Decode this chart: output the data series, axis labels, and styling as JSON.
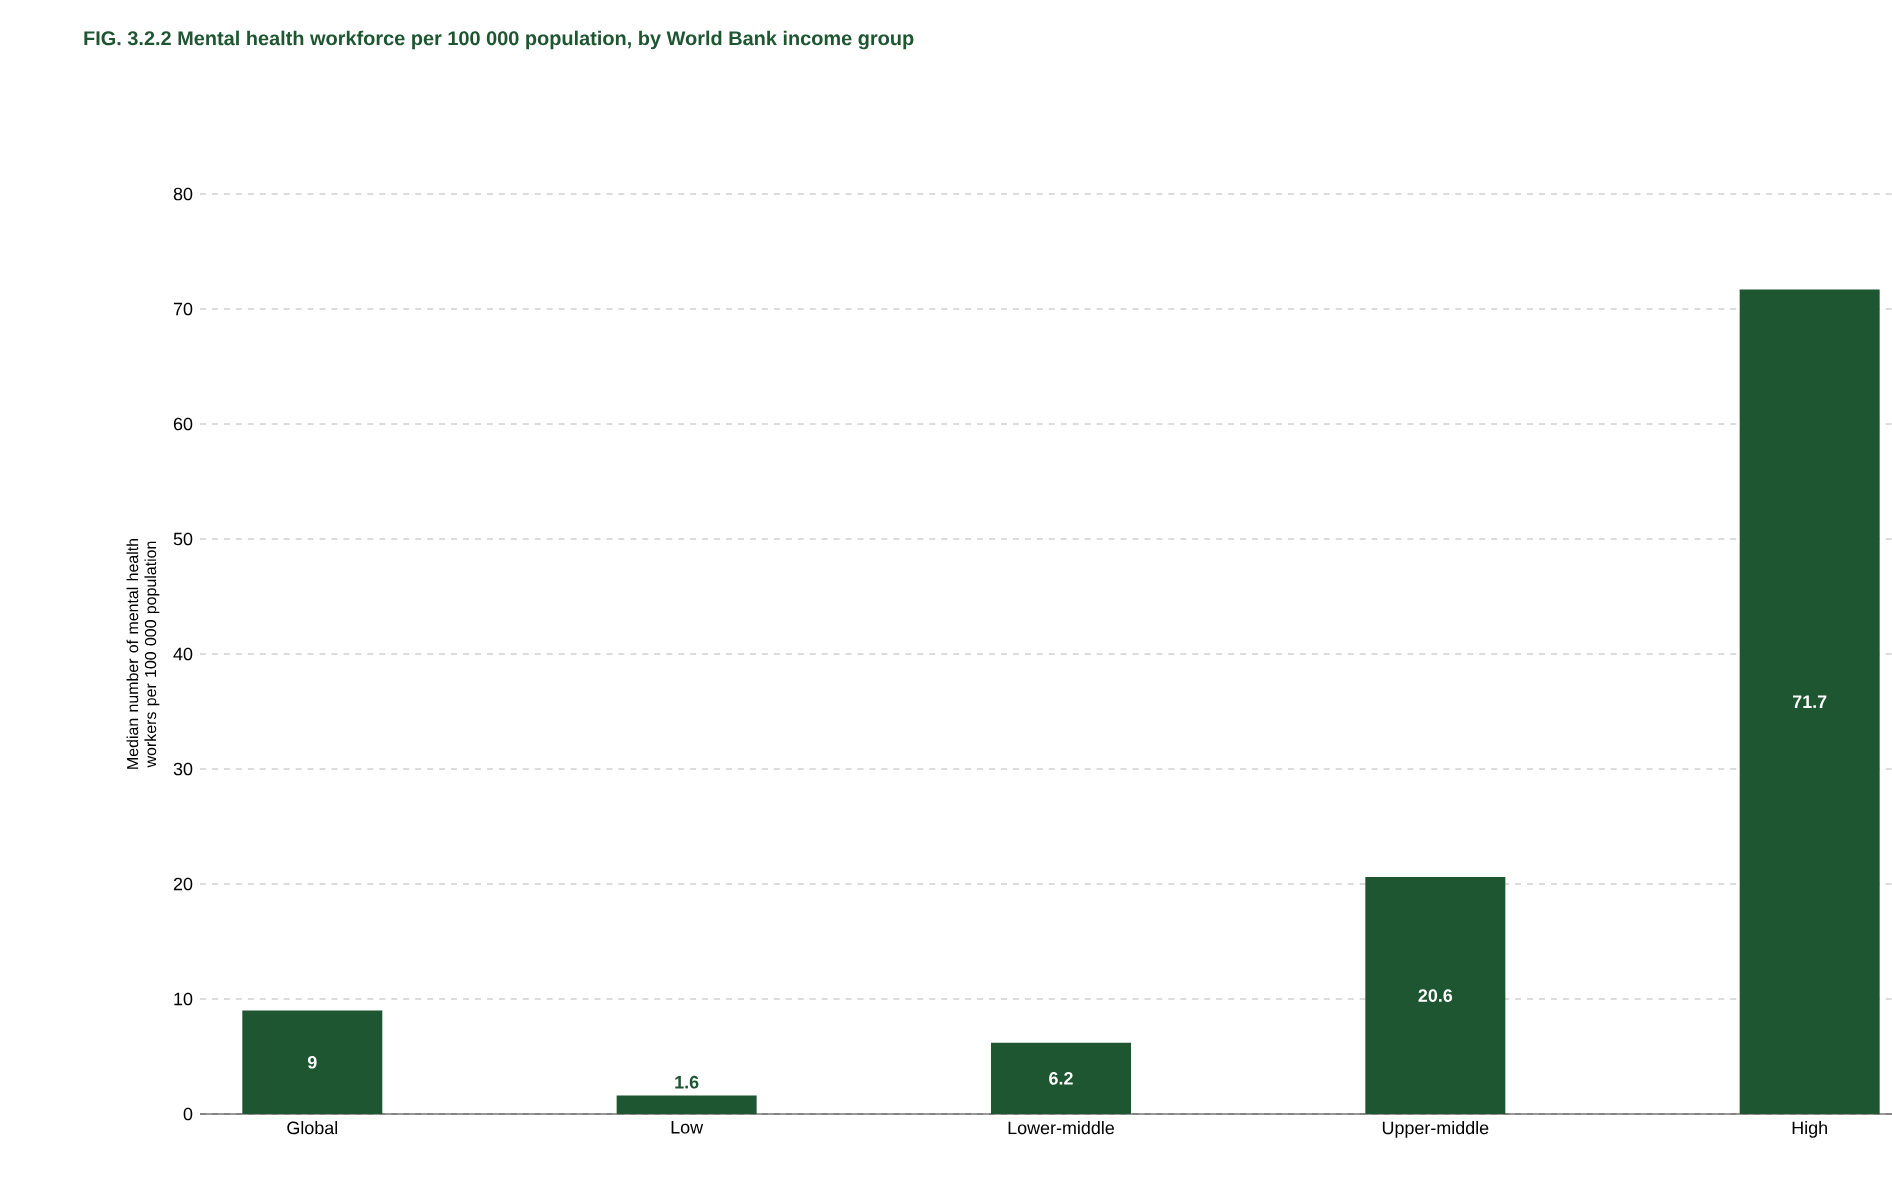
{
  "chart_data": {
    "type": "bar",
    "title": "FIG. 3.2.2 Mental health workforce per 100 000 population, by World Bank income group",
    "ylabel": "Median number of mental health workers per 100 000 population",
    "categories": [
      "Global",
      "Low",
      "Lower-middle",
      "Upper-middle",
      "High"
    ],
    "values": [
      9,
      1.6,
      6.2,
      20.6,
      71.7
    ],
    "color": "#1e5631",
    "ylim": [
      0,
      80
    ],
    "yticks": [
      0,
      10,
      20,
      30,
      40,
      50,
      60,
      70,
      80
    ],
    "grid": "y",
    "data_labels": true
  }
}
